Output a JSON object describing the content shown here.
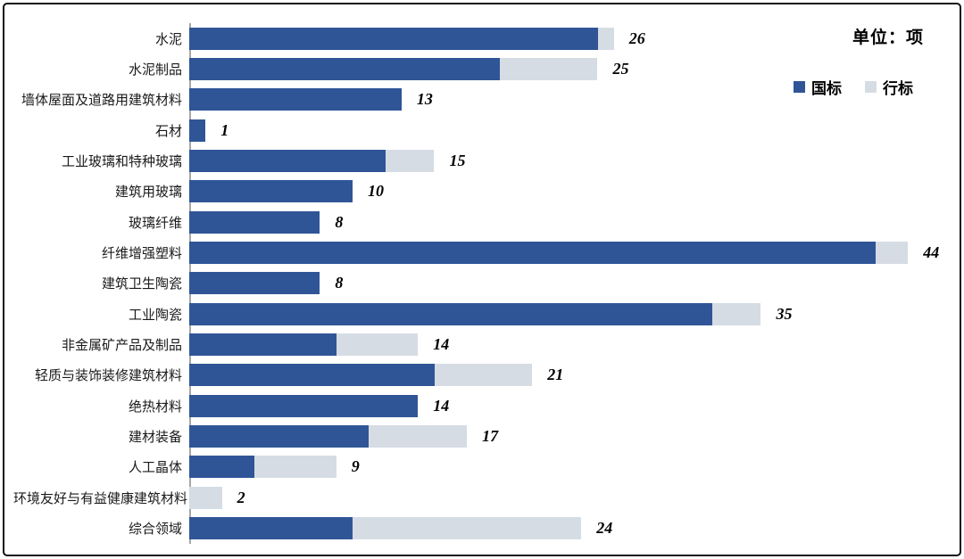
{
  "unit_label": "单位：项",
  "colors": {
    "guobiao_blue": "#2F5597",
    "hangbiao_gray": "#D6DCE4",
    "axis_line": "#A6A6A6",
    "frame_border": "#111111",
    "text": "#000000"
  },
  "chart_data": {
    "type": "bar",
    "orientation": "horizontal",
    "stacked": true,
    "title": "",
    "unit_label": "单位：项",
    "legend_position": "top-right",
    "legend": [
      "国标",
      "行标"
    ],
    "categories": [
      "水泥",
      "水泥制品",
      "墙体屋面及道路用建筑材料",
      "石材",
      "工业玻璃和特种玻璃",
      "建筑用玻璃",
      "玻璃纤维",
      "纤维增强塑料",
      "建筑卫生陶瓷",
      "工业陶瓷",
      "非金属矿产品及制品",
      "轻质与装饰装修建筑材料",
      "绝热材料",
      "建材装备",
      "人工晶体",
      "环境友好与有益健康建筑材料",
      "综合领域"
    ],
    "series": [
      {
        "name": "国标",
        "color": "#2F5597",
        "values": [
          25,
          19,
          13,
          1,
          12,
          10,
          8,
          42,
          8,
          32,
          9,
          15,
          14,
          11,
          4,
          0,
          10
        ]
      },
      {
        "name": "行标",
        "color": "#D6DCE4",
        "values": [
          1,
          6,
          0,
          0,
          3,
          0,
          0,
          2,
          0,
          3,
          5,
          6,
          0,
          6,
          5,
          2,
          14
        ]
      }
    ],
    "totals": [
      26,
      25,
      13,
      1,
      15,
      10,
      8,
      44,
      8,
      35,
      14,
      21,
      14,
      17,
      9,
      2,
      24
    ],
    "xlim": [
      0,
      46
    ],
    "grid": false,
    "xaxis_visible": false,
    "yaxis_line_visible": true
  }
}
